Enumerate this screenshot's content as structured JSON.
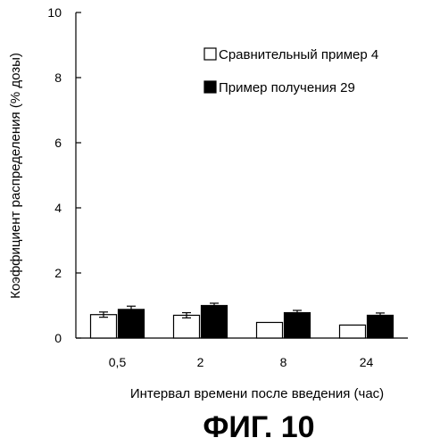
{
  "chart_data": {
    "type": "bar",
    "categories": [
      "0,5",
      "2",
      "8",
      "24"
    ],
    "series": [
      {
        "name": "Сравнительный пример 4",
        "values": [
          0.72,
          0.7,
          0.48,
          0.4
        ],
        "errors": [
          0.08,
          0.08,
          0.0,
          0.0
        ],
        "fill": "#ffffff"
      },
      {
        "name": "Пример получения 29",
        "values": [
          0.88,
          1.0,
          0.78,
          0.7
        ],
        "errors": [
          0.1,
          0.07,
          0.07,
          0.07
        ],
        "fill": "#000000"
      }
    ],
    "ylabel": "Коэффициент распределения (% дозы)",
    "xlabel": "Интервал времени после введения (час)",
    "ylim": [
      0,
      10
    ],
    "yticks": [
      0,
      2,
      4,
      6,
      8,
      10
    ],
    "grid": false,
    "legend_position": "top-right"
  },
  "figure_label": "ФИГ. 10"
}
